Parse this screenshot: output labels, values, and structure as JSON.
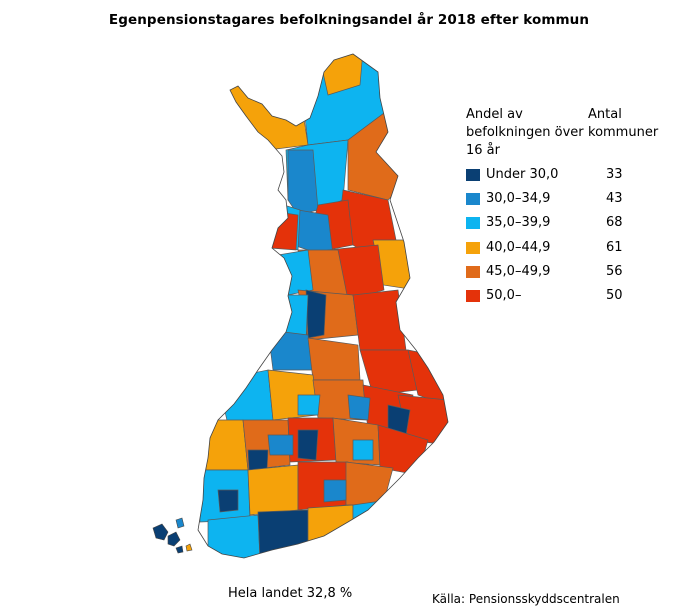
{
  "title": "Egenpensionstagares befolkningsandel år 2018 efter kommun",
  "legend": {
    "heading_share": "Andel av befolkningen över 16 år",
    "heading_count": "Antal kommuner",
    "classes": [
      {
        "label": "Under 30,0",
        "count": "33",
        "color": "#0a3f73"
      },
      {
        "label": "30,0–34,9",
        "count": "43",
        "color": "#1a87cc"
      },
      {
        "label": "35,0–39,9",
        "count": "68",
        "color": "#0db4f0"
      },
      {
        "label": "40,0–44,9",
        "count": "61",
        "color": "#f5a20a"
      },
      {
        "label": "45,0–49,9",
        "count": "56",
        "color": "#e06b1a"
      },
      {
        "label": "50,0–",
        "count": "50",
        "color": "#e4320a"
      }
    ]
  },
  "footer": {
    "total": "Hela landet 32,8 %",
    "source": "Källa: Pensionsskyddscentralen"
  }
}
